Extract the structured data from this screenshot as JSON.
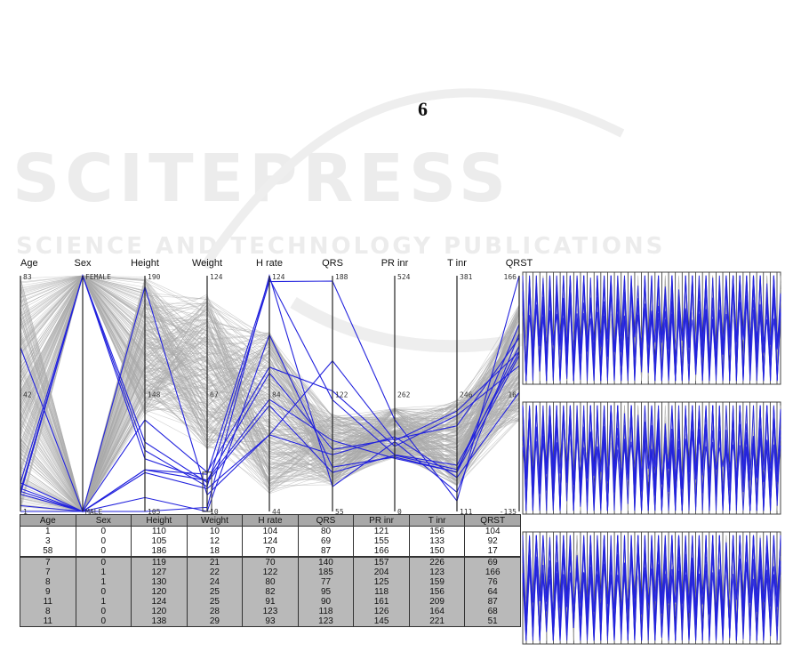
{
  "page_number": "6",
  "watermark": {
    "main": "SCITEPRESS",
    "sub": "SCIENCE AND TECHNOLOGY PUBLICATIONS"
  },
  "colors": {
    "context_lines": "#a9a9a9",
    "selected_lines": "#2222dd",
    "axes": "#222222",
    "table_header": "#a8a8a8",
    "table_group_b": "#b9b9b9"
  },
  "chart_data": [
    {
      "type": "parallel_coordinates",
      "axes": [
        {
          "name": "Age",
          "max": "83",
          "mid": "42",
          "min": "1"
        },
        {
          "name": "Sex",
          "max": "FEMALE",
          "mid": "",
          "min": "MALE"
        },
        {
          "name": "Height",
          "max": "190",
          "mid": "148",
          "min": "105"
        },
        {
          "name": "Weight",
          "max": "124",
          "mid": "67",
          "min": "10"
        },
        {
          "name": "H rate",
          "max": "124",
          "mid": "84",
          "min": "44"
        },
        {
          "name": "QRS",
          "max": "188",
          "mid": "122",
          "min": "55"
        },
        {
          "name": "PR inr",
          "max": "524",
          "mid": "262",
          "min": "0"
        },
        {
          "name": "T inr",
          "max": "381",
          "mid": "246",
          "min": "111"
        },
        {
          "name": "QRST",
          "max": "166",
          "mid": "16",
          "min": "-135"
        }
      ],
      "brush": {
        "axis": "Weight",
        "range": [
          10,
          29
        ]
      }
    },
    {
      "type": "table",
      "columns": [
        "Age",
        "Sex",
        "Height",
        "Weight",
        "H rate",
        "QRS",
        "PR inr",
        "T inr",
        "QRST"
      ],
      "rows": [
        {
          "group": "a",
          "values": [
            "1",
            "0",
            "110",
            "10",
            "104",
            "80",
            "121",
            "156",
            "104"
          ]
        },
        {
          "group": "a",
          "values": [
            "3",
            "0",
            "105",
            "12",
            "124",
            "69",
            "155",
            "133",
            "92"
          ]
        },
        {
          "group": "a",
          "values": [
            "58",
            "0",
            "186",
            "18",
            "70",
            "87",
            "166",
            "150",
            "17"
          ]
        },
        {
          "group": "b",
          "values": [
            "7",
            "0",
            "119",
            "21",
            "70",
            "140",
            "157",
            "226",
            "69"
          ]
        },
        {
          "group": "b",
          "values": [
            "7",
            "1",
            "127",
            "22",
            "122",
            "185",
            "204",
            "123",
            "166"
          ]
        },
        {
          "group": "b",
          "values": [
            "8",
            "1",
            "130",
            "24",
            "80",
            "77",
            "125",
            "159",
            "76"
          ]
        },
        {
          "group": "b",
          "values": [
            "9",
            "0",
            "120",
            "25",
            "82",
            "95",
            "118",
            "156",
            "64"
          ]
        },
        {
          "group": "b",
          "values": [
            "11",
            "1",
            "124",
            "25",
            "91",
            "90",
            "161",
            "209",
            "87"
          ]
        },
        {
          "group": "b",
          "values": [
            "8",
            "0",
            "120",
            "28",
            "123",
            "118",
            "126",
            "164",
            "68"
          ]
        },
        {
          "group": "b",
          "values": [
            "11",
            "0",
            "138",
            "29",
            "93",
            "123",
            "145",
            "221",
            "51"
          ]
        }
      ]
    },
    {
      "type": "line",
      "panels": 3,
      "series": [
        "context",
        "selected"
      ]
    }
  ]
}
